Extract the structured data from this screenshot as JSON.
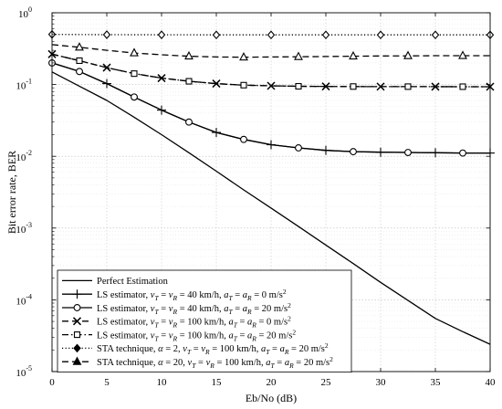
{
  "chart_data": {
    "type": "line",
    "title": "",
    "xlabel": "Eb/No (dB)",
    "ylabel": "Bit error rate, BER",
    "xlim": [
      0,
      40
    ],
    "ylim": [
      1e-05,
      1
    ],
    "yscale": "log",
    "grid": true,
    "legend_position": "bottom-left",
    "x_ticks": [
      0,
      5,
      10,
      15,
      20,
      25,
      30,
      35,
      40
    ],
    "x_tick_labels": [
      "0",
      "5",
      "10",
      "15",
      "20",
      "25",
      "30",
      "35",
      "40"
    ],
    "y_ticks": [
      {
        "value": 1e-05,
        "base": "10",
        "exp": "-5"
      },
      {
        "value": 0.0001,
        "base": "10",
        "exp": "-4"
      },
      {
        "value": 0.001,
        "base": "10",
        "exp": "-3"
      },
      {
        "value": 0.01,
        "base": "10",
        "exp": "-2"
      },
      {
        "value": 0.1,
        "base": "10",
        "exp": "-1"
      },
      {
        "value": 1,
        "base": "10",
        "exp": "0"
      }
    ],
    "series": [
      {
        "name": "Perfect Estimation",
        "dash": "solid",
        "marker": "none",
        "color": "#000000",
        "x": [
          0,
          2.5,
          5,
          7.5,
          10,
          12.5,
          15,
          17.5,
          20,
          22.5,
          25,
          27.5,
          30,
          32.5,
          35,
          37.5,
          40
        ],
        "y": [
          0.15,
          0.095,
          0.06,
          0.035,
          0.02,
          0.0112,
          0.0062,
          0.0034,
          0.0019,
          0.00105,
          0.00058,
          0.00032,
          0.000175,
          9.8e-05,
          5.5e-05,
          3.6e-05,
          2.4e-05
        ]
      },
      {
        "name": "LS estimator, ν_T = ν_R = 40 km/h, a_T = a_R = 0 m/s²",
        "dash": "solid",
        "marker": "plus",
        "color": "#000000",
        "x": [
          0,
          2.5,
          5,
          7.5,
          10,
          12.5,
          15,
          17.5,
          20,
          22.5,
          25,
          27.5,
          30,
          32.5,
          35,
          37.5,
          40
        ],
        "y": [
          0.2,
          0.152,
          0.103,
          0.067,
          0.044,
          0.03,
          0.0215,
          0.0172,
          0.0145,
          0.0131,
          0.0121,
          0.0116,
          0.0114,
          0.0113,
          0.0112,
          0.0111,
          0.0111
        ],
        "marker_x": [
          5,
          10,
          15,
          20,
          25,
          30,
          35,
          40
        ]
      },
      {
        "name": "LS estimator, ν_T = ν_R = 40 km/h, a_T = a_R = 20 m/s²",
        "dash": "solid",
        "marker": "circle",
        "color": "#000000",
        "x": [
          0,
          2.5,
          5,
          7.5,
          10,
          12.5,
          15,
          17.5,
          20,
          22.5,
          25,
          27.5,
          30,
          32.5,
          35,
          37.5,
          40
        ],
        "y": [
          0.2,
          0.152,
          0.103,
          0.067,
          0.044,
          0.03,
          0.0215,
          0.0172,
          0.0145,
          0.0131,
          0.0121,
          0.0116,
          0.0114,
          0.0113,
          0.0112,
          0.0111,
          0.0111
        ],
        "marker_x": [
          0,
          2.5,
          7.5,
          12.5,
          17.5,
          22.5,
          27.5,
          32.5,
          37.5
        ]
      },
      {
        "name": "LS estimator, ν_T = ν_R = 100 km/h, a_T = a_R = 0 m/s²",
        "dash": "dashed",
        "marker": "x",
        "color": "#000000",
        "x": [
          0,
          2.5,
          5,
          7.5,
          10,
          12.5,
          15,
          17.5,
          20,
          22.5,
          25,
          27.5,
          30,
          32.5,
          35,
          37.5,
          40
        ],
        "y": [
          0.265,
          0.215,
          0.172,
          0.142,
          0.123,
          0.111,
          0.103,
          0.098,
          0.096,
          0.0945,
          0.094,
          0.0938,
          0.0936,
          0.0935,
          0.0934,
          0.0933,
          0.0932
        ],
        "marker_x": [
          0,
          5,
          10,
          15,
          20,
          25,
          30,
          35,
          40
        ]
      },
      {
        "name": "LS estimator, ν_T = ν_R = 100 km/h, a_T = a_R = 20 m/s²",
        "dash": "dashdot",
        "marker": "square",
        "color": "#000000",
        "x": [
          0,
          2.5,
          5,
          7.5,
          10,
          12.5,
          15,
          17.5,
          20,
          22.5,
          25,
          27.5,
          30,
          32.5,
          35,
          37.5,
          40
        ],
        "y": [
          0.265,
          0.215,
          0.172,
          0.142,
          0.123,
          0.111,
          0.103,
          0.098,
          0.096,
          0.0945,
          0.094,
          0.0938,
          0.0936,
          0.0935,
          0.0934,
          0.0933,
          0.0932
        ],
        "marker_x": [
          2.5,
          7.5,
          12.5,
          17.5,
          22.5,
          27.5,
          32.5,
          37.5
        ]
      },
      {
        "name": "STA technique, α = 2, ν_T = ν_R = 100 km/h, a_T = a_R = 20 m/s²",
        "dash": "dotted",
        "marker": "diamond",
        "color": "#000000",
        "x": [
          0,
          5,
          10,
          15,
          20,
          25,
          30,
          35,
          40
        ],
        "y": [
          0.5,
          0.495,
          0.493,
          0.492,
          0.492,
          0.492,
          0.492,
          0.492,
          0.492
        ],
        "marker_x": [
          0,
          5,
          10,
          15,
          20,
          25,
          30,
          35,
          40
        ]
      },
      {
        "name": "STA technique, α = 20, ν_T = ν_R = 100 km/h, a_T = a_R = 20 m/s²",
        "dash": "dashed",
        "marker": "triangle",
        "color": "#000000",
        "x": [
          0,
          2.5,
          5,
          7.5,
          10,
          12.5,
          15,
          17.5,
          20,
          22.5,
          25,
          27.5,
          30,
          32.5,
          35,
          37.5,
          40
        ],
        "y": [
          0.36,
          0.33,
          0.3,
          0.275,
          0.26,
          0.248,
          0.242,
          0.24,
          0.242,
          0.244,
          0.246,
          0.248,
          0.25,
          0.251,
          0.252,
          0.252,
          0.252
        ],
        "marker_x": [
          2.5,
          7.5,
          12.5,
          17.5,
          22.5,
          27.5,
          32.5,
          37.5
        ]
      }
    ],
    "legend": [
      [
        {
          "t": "Perfect Estimation"
        }
      ],
      [
        {
          "t": "LS estimator, "
        },
        {
          "t": "ν",
          "i": 1
        },
        {
          "t": "T",
          "i": 1,
          "sub": 1
        },
        {
          "t": " = "
        },
        {
          "t": "ν",
          "i": 1
        },
        {
          "t": "R",
          "i": 1,
          "sub": 1
        },
        {
          "t": " = 40 km/h, "
        },
        {
          "t": "a",
          "i": 1
        },
        {
          "t": "T",
          "i": 1,
          "sub": 1
        },
        {
          "t": " = "
        },
        {
          "t": "a",
          "i": 1
        },
        {
          "t": "R",
          "i": 1,
          "sub": 1
        },
        {
          "t": " = 0 m/s"
        },
        {
          "t": "2",
          "sup": 1
        }
      ],
      [
        {
          "t": "LS estimator, "
        },
        {
          "t": "ν",
          "i": 1
        },
        {
          "t": "T",
          "i": 1,
          "sub": 1
        },
        {
          "t": " = "
        },
        {
          "t": "ν",
          "i": 1
        },
        {
          "t": "R",
          "i": 1,
          "sub": 1
        },
        {
          "t": " = 40 km/h, "
        },
        {
          "t": "a",
          "i": 1
        },
        {
          "t": "T",
          "i": 1,
          "sub": 1
        },
        {
          "t": " = "
        },
        {
          "t": "a",
          "i": 1
        },
        {
          "t": "R",
          "i": 1,
          "sub": 1
        },
        {
          "t": " = 20 m/s"
        },
        {
          "t": "2",
          "sup": 1
        }
      ],
      [
        {
          "t": "LS estimator, "
        },
        {
          "t": "ν",
          "i": 1
        },
        {
          "t": "T",
          "i": 1,
          "sub": 1
        },
        {
          "t": " = "
        },
        {
          "t": "ν",
          "i": 1
        },
        {
          "t": "R",
          "i": 1,
          "sub": 1
        },
        {
          "t": " = 100 km/h, "
        },
        {
          "t": "a",
          "i": 1
        },
        {
          "t": "T",
          "i": 1,
          "sub": 1
        },
        {
          "t": " = "
        },
        {
          "t": "a",
          "i": 1
        },
        {
          "t": "R",
          "i": 1,
          "sub": 1
        },
        {
          "t": " = 0 m/s"
        },
        {
          "t": "2",
          "sup": 1
        }
      ],
      [
        {
          "t": "LS estimator, "
        },
        {
          "t": "ν",
          "i": 1
        },
        {
          "t": "T",
          "i": 1,
          "sub": 1
        },
        {
          "t": " = "
        },
        {
          "t": "ν",
          "i": 1
        },
        {
          "t": "R",
          "i": 1,
          "sub": 1
        },
        {
          "t": " = 100 km/h, "
        },
        {
          "t": "a",
          "i": 1
        },
        {
          "t": "T",
          "i": 1,
          "sub": 1
        },
        {
          "t": " = "
        },
        {
          "t": "a",
          "i": 1
        },
        {
          "t": "R",
          "i": 1,
          "sub": 1
        },
        {
          "t": " = 20 m/s"
        },
        {
          "t": "2",
          "sup": 1
        }
      ],
      [
        {
          "t": "STA technique, "
        },
        {
          "t": "α",
          "i": 1
        },
        {
          "t": " = 2, "
        },
        {
          "t": "ν",
          "i": 1
        },
        {
          "t": "T",
          "i": 1,
          "sub": 1
        },
        {
          "t": " = "
        },
        {
          "t": "ν",
          "i": 1
        },
        {
          "t": "R",
          "i": 1,
          "sub": 1
        },
        {
          "t": " = 100 km/h, "
        },
        {
          "t": "a",
          "i": 1
        },
        {
          "t": "T",
          "i": 1,
          "sub": 1
        },
        {
          "t": " = "
        },
        {
          "t": "a",
          "i": 1
        },
        {
          "t": "R",
          "i": 1,
          "sub": 1
        },
        {
          "t": " = 20 m/s"
        },
        {
          "t": "2",
          "sup": 1
        }
      ],
      [
        {
          "t": "STA technique, "
        },
        {
          "t": "α",
          "i": 1
        },
        {
          "t": " = 20, "
        },
        {
          "t": "ν",
          "i": 1
        },
        {
          "t": "T",
          "i": 1,
          "sub": 1
        },
        {
          "t": " = "
        },
        {
          "t": "ν",
          "i": 1
        },
        {
          "t": "R",
          "i": 1,
          "sub": 1
        },
        {
          "t": " = 100 km/h, "
        },
        {
          "t": "a",
          "i": 1
        },
        {
          "t": "T",
          "i": 1,
          "sub": 1
        },
        {
          "t": " = "
        },
        {
          "t": "a",
          "i": 1
        },
        {
          "t": "R",
          "i": 1,
          "sub": 1
        },
        {
          "t": " = 20 m/s"
        },
        {
          "t": "2",
          "sup": 1
        }
      ]
    ]
  }
}
